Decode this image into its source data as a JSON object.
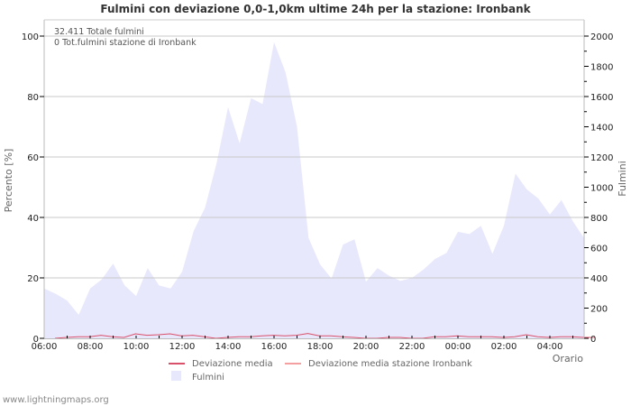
{
  "title": "Fulmini con deviazione 0,0-1,0km ultime 24h per la stazione: Ironbank",
  "info": {
    "line1": "32.411 Totale fulmini",
    "line2": "0 Tot.fulmini stazione di Ironbank"
  },
  "axes": {
    "left_label": "Percento   [%]",
    "right_label": "Fulmini",
    "x_label": "Orario",
    "left_ticks": [
      "0",
      "20",
      "40",
      "60",
      "80",
      "100"
    ],
    "right_ticks": [
      "0",
      "200",
      "400",
      "600",
      "800",
      "1000",
      "1200",
      "1400",
      "1600",
      "1800",
      "2000"
    ],
    "x_ticks": [
      "06:00",
      "08:00",
      "10:00",
      "12:00",
      "14:00",
      "16:00",
      "18:00",
      "20:00",
      "22:00",
      "00:00",
      "02:00",
      "04:00"
    ]
  },
  "legend": {
    "item1": "Deviazione media",
    "item2": "Deviazione media stazione Ironbank",
    "item3": "Fulmini"
  },
  "colors": {
    "area": "#e8e8fc",
    "dev_line": "#d9506a",
    "dev_station_line": "#f4a0a0",
    "grid": "#c8c8c8"
  },
  "watermark": "www.lightningmaps.org",
  "chart_data": {
    "type": "area",
    "title": "Fulmini con deviazione 0,0-1,0km ultime 24h per la stazione: Ironbank",
    "xlabel": "Orario",
    "ylabel": "Percento [%]",
    "y2label": "Fulmini",
    "ylim": [
      0,
      100
    ],
    "y2lim": [
      0,
      2000
    ],
    "grid": true,
    "legend_position": "bottom",
    "x": [
      "06:00",
      "06:30",
      "07:00",
      "07:30",
      "08:00",
      "08:30",
      "09:00",
      "09:30",
      "10:00",
      "10:30",
      "11:00",
      "11:30",
      "12:00",
      "12:30",
      "13:00",
      "13:30",
      "14:00",
      "14:30",
      "15:00",
      "15:30",
      "16:00",
      "16:30",
      "17:00",
      "17:30",
      "18:00",
      "18:30",
      "19:00",
      "19:30",
      "20:00",
      "20:30",
      "21:00",
      "21:30",
      "22:00",
      "22:30",
      "23:00",
      "23:30",
      "00:00",
      "00:30",
      "01:00",
      "01:30",
      "02:00",
      "02:30",
      "03:00",
      "03:30",
      "04:00",
      "04:30",
      "05:00",
      "05:30"
    ],
    "series": [
      {
        "name": "Fulmini",
        "axis": "right",
        "values": [
          330,
          295,
          250,
          155,
          330,
          390,
          495,
          350,
          280,
          465,
          350,
          330,
          440,
          710,
          865,
          1160,
          1530,
          1290,
          1590,
          1550,
          1960,
          1760,
          1400,
          665,
          490,
          395,
          620,
          655,
          375,
          465,
          415,
          380,
          400,
          455,
          525,
          565,
          705,
          690,
          745,
          560,
          745,
          1090,
          985,
          925,
          820,
          915,
          775,
          660
        ]
      },
      {
        "name": "Deviazione media",
        "axis": "left",
        "values": [
          0,
          0.3,
          0.5,
          0.5,
          1,
          0.5,
          0.3,
          1.5,
          1,
          1.2,
          1.5,
          0.8,
          1,
          0.5,
          0,
          0.3,
          0.5,
          0.5,
          0.8,
          1,
          0.8,
          1,
          1.6,
          0.8,
          0.8,
          0.5,
          0.3,
          0,
          0,
          0.3,
          0.3,
          0,
          0,
          0.5,
          0.5,
          0.8,
          0.5,
          0.5,
          0.5,
          0.3,
          0.5,
          1.2,
          0.5,
          0.3,
          0.5,
          0.5,
          0.3,
          0.3
        ]
      },
      {
        "name": "Deviazione media stazione Ironbank",
        "axis": "left",
        "values": []
      }
    ],
    "annotations": [
      "32.411 Totale fulmini",
      "0 Tot.fulmini stazione di Ironbank"
    ]
  }
}
